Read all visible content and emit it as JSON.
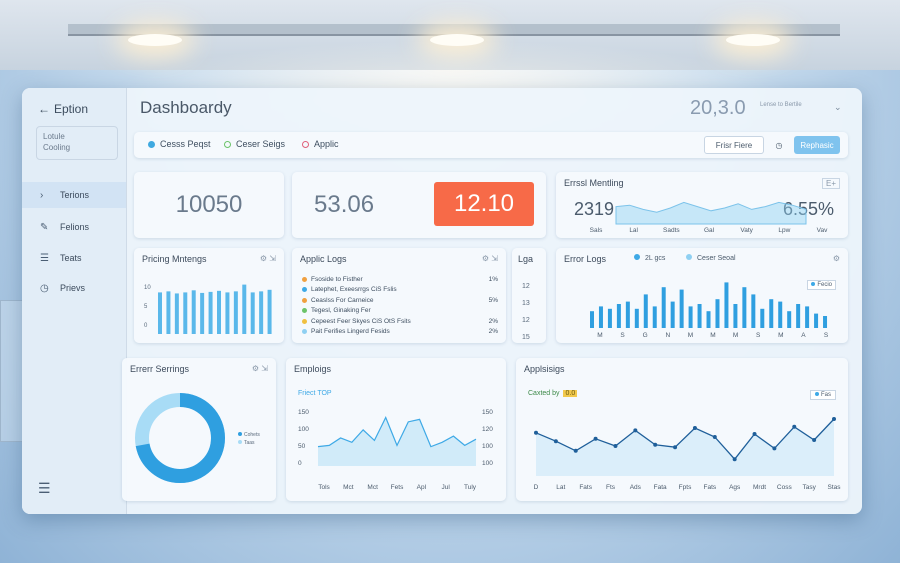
{
  "sidebar": {
    "brand_label": "Eption",
    "box_lines": [
      "Lotule",
      "Cooling"
    ],
    "items": [
      {
        "label": "Terions",
        "icon": "chevron-right-icon",
        "glyph": "›"
      },
      {
        "label": "Felions",
        "icon": "edit-icon",
        "glyph": "✎"
      },
      {
        "label": "Teats",
        "icon": "list-icon",
        "glyph": "☰"
      },
      {
        "label": "Prievs",
        "icon": "clock-icon",
        "glyph": "◷"
      }
    ]
  },
  "header": {
    "title": "Dashboardy",
    "value": "20,3.0",
    "subtext": "Lense to Bertile"
  },
  "filters": {
    "chips": [
      {
        "label": "Cesss Peqst",
        "color": "#3fa9e0"
      },
      {
        "label": "Ceser Seigs",
        "color": "#6cc36a"
      },
      {
        "label": "Applic",
        "color": "#e0607a"
      }
    ],
    "filter_button": "Frisr Fiere",
    "primary_button": "Rephasic"
  },
  "stats": {
    "a": "10050",
    "b": "53.06",
    "c": "12.10"
  },
  "colors": {
    "accent": "#3ea9e6",
    "highlight": "#f76a48",
    "light_accent": "#8fd0f2"
  },
  "cards": {
    "error_monitoring": {
      "title": "Errssl Mentling",
      "value_left": "2319",
      "value_right": "6.55%",
      "badge": "E+",
      "x_labels": [
        "Sals",
        "Lal",
        "Sadts",
        "Gal",
        "Vaty",
        "Lpw",
        "Vav"
      ],
      "series": [
        0.55,
        0.6,
        0.45,
        0.35,
        0.5,
        0.7,
        0.55,
        0.4,
        0.5,
        0.65,
        0.45,
        0.55,
        0.7,
        0.6,
        0.45
      ]
    },
    "pricing": {
      "title": "Pricing Mntengs",
      "y_labels": [
        "10",
        "5",
        "0"
      ],
      "bars": [
        0.8,
        0.82,
        0.78,
        0.8,
        0.84,
        0.79,
        0.81,
        0.83,
        0.8,
        0.82,
        0.95,
        0.8,
        0.82,
        0.85
      ]
    },
    "applic_logs": {
      "title": "Applic Logs",
      "rows": [
        {
          "text": "Fsoside to Fisther",
          "pct": "1%",
          "color": "#f0a040"
        },
        {
          "text": "Latephet, Exeesrrgs CiS Fslis",
          "pct": "",
          "color": "#3ea9e6"
        },
        {
          "text": "Ceaslss For Carneice",
          "pct": "5%",
          "color": "#f0a040"
        },
        {
          "text": "Tegesl, Ginaking Fer",
          "pct": "",
          "color": "#6cc36a"
        },
        {
          "text": "Cepeest Feer Skyes CiS OtS Fsits",
          "pct": "2%",
          "color": "#f0c040"
        },
        {
          "text": "Pait Ferifies Lingerd Fesids",
          "pct": "2%",
          "color": "#8fd0f2"
        }
      ],
      "side_title": "Lga",
      "side_values": [
        "12",
        "13",
        "12",
        "15"
      ]
    },
    "error_logs": {
      "title": "Error Logs",
      "legend": [
        "2L gcs",
        "Ceser Seoal"
      ],
      "tag": "Fecio",
      "x_labels": [
        "M",
        "S",
        "G",
        "N",
        "M",
        "M",
        "M",
        "S",
        "M",
        "A",
        "S"
      ],
      "bars": [
        0.35,
        0.45,
        0.4,
        0.5,
        0.55,
        0.4,
        0.7,
        0.45,
        0.85,
        0.55,
        0.8,
        0.45,
        0.5,
        0.35,
        0.6,
        0.95,
        0.5,
        0.85,
        0.7,
        0.4,
        0.6,
        0.55,
        0.35,
        0.5,
        0.45,
        0.3,
        0.25
      ]
    },
    "error_settings": {
      "title": "Errerr Serrings",
      "legend": [
        "Cohets",
        "Taas"
      ],
      "donut": [
        0.72,
        0.28
      ]
    },
    "employ_logs": {
      "title": "Emploigs",
      "subtitle": "Friect TOP",
      "y_left": [
        "150",
        "100",
        "50",
        "0"
      ],
      "y_right": [
        "150",
        "120",
        "100",
        "100"
      ],
      "x_labels": [
        "Tols",
        "Mct",
        "Mct",
        "Fets",
        "Apl",
        "Jul",
        "Tuly"
      ],
      "series": [
        0.28,
        0.3,
        0.42,
        0.35,
        0.55,
        0.38,
        0.75,
        0.3,
        0.68,
        0.72,
        0.28,
        0.35,
        0.45,
        0.3,
        0.4
      ]
    },
    "appl_listings": {
      "title": "Applsisigs",
      "subtitle": "Caxted by",
      "badge_text": "0.0",
      "tag": "Fas",
      "x_labels": [
        "D",
        "Lat",
        "Fats",
        "Fts",
        "Ads",
        "Fata",
        "Fpts",
        "Fats",
        "Ags",
        "Mrdt",
        "Coss",
        "Tasy",
        "Stas"
      ],
      "series": [
        0.62,
        0.48,
        0.32,
        0.52,
        0.4,
        0.66,
        0.42,
        0.38,
        0.7,
        0.55,
        0.18,
        0.6,
        0.36,
        0.72,
        0.5,
        0.85
      ]
    }
  }
}
